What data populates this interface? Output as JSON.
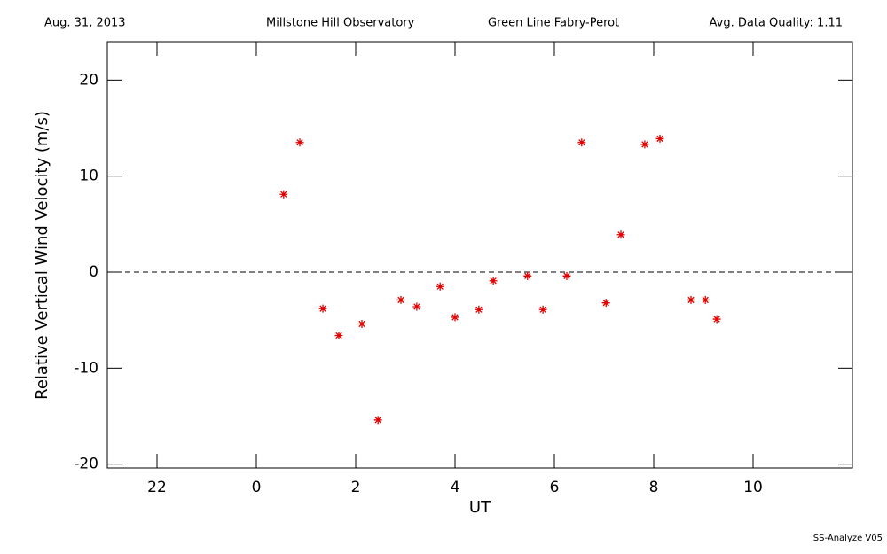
{
  "chart_data": {
    "type": "scatter",
    "header": [
      "Aug. 31, 2013",
      "Millstone Hill Observatory",
      "Green Line Fabry-Perot",
      "Avg. Data Quality: 1.11"
    ],
    "footer": "SS-Analyze V05",
    "x_label": "UT",
    "y_label": "Relative Vertical Wind Velocity (m/s)",
    "xlim": [
      -3,
      12
    ],
    "ylim": [
      -20.4,
      24
    ],
    "xticks": [
      {
        "value": -2,
        "label": "22"
      },
      0,
      2,
      4,
      6,
      8,
      10
    ],
    "yticks": [
      -20,
      -10,
      0,
      10,
      20
    ],
    "reference_line": 0,
    "color": "#e00000",
    "x": [
      0.55,
      0.875,
      1.34,
      1.66,
      2.125,
      2.45,
      2.91,
      3.23,
      3.7,
      4.0,
      4.48,
      4.77,
      5.46,
      5.77,
      6.25,
      6.55,
      7.04,
      7.34,
      7.82,
      8.125,
      8.75,
      9.04,
      9.27
    ],
    "values": [
      8.1,
      13.5,
      -3.8,
      -6.6,
      -5.4,
      -15.4,
      -2.9,
      -3.6,
      -1.5,
      -4.7,
      -3.9,
      -0.9,
      -0.4,
      -3.9,
      -0.4,
      13.5,
      -3.2,
      3.9,
      13.3,
      13.9,
      -2.9,
      -2.9,
      -4.9
    ]
  }
}
